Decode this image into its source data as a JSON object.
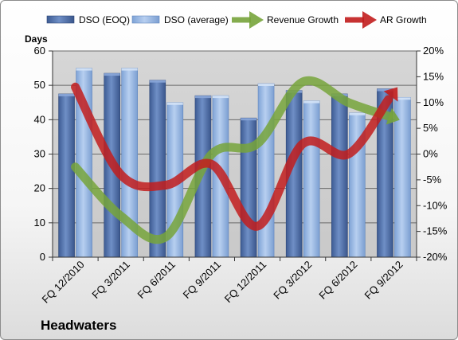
{
  "company": "Headwaters",
  "chart_data": {
    "type": "bar",
    "categories": [
      "FQ 12/2010",
      "FQ 3/2011",
      "FQ 6/2011",
      "FQ 9/2011",
      "FQ 12/2011",
      "FQ 3/2012",
      "FQ 6/2012",
      "FQ 9/2012"
    ],
    "y_left_label": "Days",
    "y_left_range": [
      0,
      60
    ],
    "y_left_ticks": [
      "0",
      "10",
      "20",
      "30",
      "40",
      "50",
      "60"
    ],
    "y_right_range": [
      -20,
      20
    ],
    "y_right_ticks": [
      "-20%",
      "-15%",
      "-10%",
      "-5%",
      "0%",
      "5%",
      "10%",
      "15%",
      "20%"
    ],
    "grid": true,
    "legend_position": "top",
    "series": [
      {
        "name": "DSO (EOQ)",
        "type": "bar",
        "axis": "left",
        "color": "#4f6fa8",
        "values": [
          47.5,
          53.5,
          51.5,
          47,
          40.5,
          48.5,
          47.5,
          49
        ]
      },
      {
        "name": "DSO (average)",
        "type": "bar",
        "axis": "left",
        "color": "#94b6e2",
        "values": [
          55,
          55,
          45,
          47,
          50.5,
          45.5,
          42,
          46.5
        ]
      },
      {
        "name": "Revenue Growth",
        "type": "line",
        "axis": "right",
        "unit": "%",
        "color": "#77a43b",
        "values": [
          -2.5,
          -12,
          -16,
          0,
          2,
          14,
          10,
          7
        ]
      },
      {
        "name": "AR Growth",
        "type": "line",
        "axis": "right",
        "unit": "%",
        "color": "#c21d1d",
        "values": [
          13,
          -4,
          -6,
          -2,
          -14,
          2,
          0,
          12
        ]
      }
    ]
  }
}
